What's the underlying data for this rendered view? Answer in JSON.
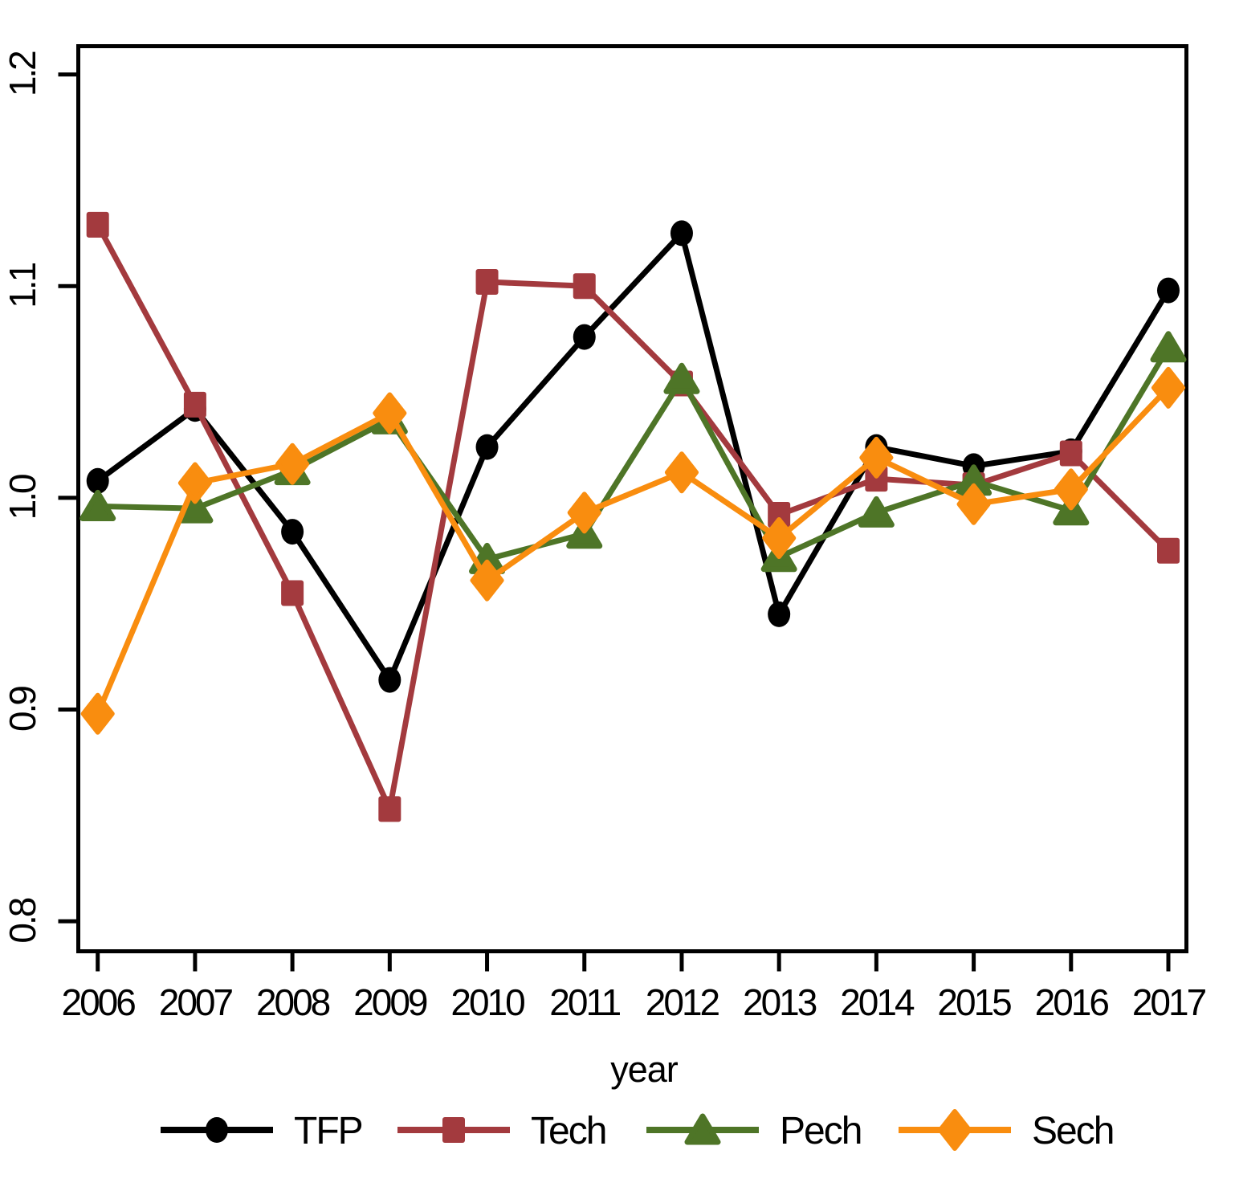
{
  "figure": {
    "background_color": "#ffffff",
    "axis_color": "#000000"
  },
  "chart_data": {
    "type": "line",
    "title": "",
    "xlabel": "year",
    "ylabel": "",
    "x": [
      2006,
      2007,
      2008,
      2009,
      2010,
      2011,
      2012,
      2013,
      2014,
      2015,
      2016,
      2017
    ],
    "xtick_labels": [
      "2006",
      "2007",
      "2008",
      "2009",
      "2010",
      "2011",
      "2012",
      "2013",
      "2014",
      "2015",
      "2016",
      "2017"
    ],
    "ylim": [
      0.8,
      1.2
    ],
    "ytick_values": [
      0.8,
      0.9,
      1.0,
      1.1,
      1.2
    ],
    "ytick_labels": [
      "0.8",
      "0.9",
      "1.0",
      "1.1",
      "1.2"
    ],
    "grid": false,
    "legend_position": "bottom",
    "series": [
      {
        "name": "TFP",
        "color": "#000000",
        "marker": "circle",
        "values": [
          1.008,
          1.042,
          0.984,
          0.914,
          1.024,
          1.076,
          1.125,
          0.945,
          1.024,
          1.015,
          1.022,
          1.098
        ]
      },
      {
        "name": "Tech",
        "color": "#A33A3E",
        "marker": "square",
        "values": [
          1.129,
          1.044,
          0.955,
          0.853,
          1.102,
          1.1,
          1.054,
          0.992,
          1.009,
          1.006,
          1.021,
          0.975
        ]
      },
      {
        "name": "Pech",
        "color": "#4E7527",
        "marker": "triangle",
        "values": [
          0.996,
          0.995,
          1.013,
          1.037,
          0.971,
          0.983,
          1.056,
          0.972,
          0.993,
          1.008,
          0.994,
          1.071
        ]
      },
      {
        "name": "Sech",
        "color": "#F98D0F",
        "marker": "diamond",
        "values": [
          0.898,
          1.007,
          1.016,
          1.04,
          0.961,
          0.993,
          1.012,
          0.981,
          1.019,
          0.997,
          1.004,
          1.052
        ]
      }
    ]
  }
}
